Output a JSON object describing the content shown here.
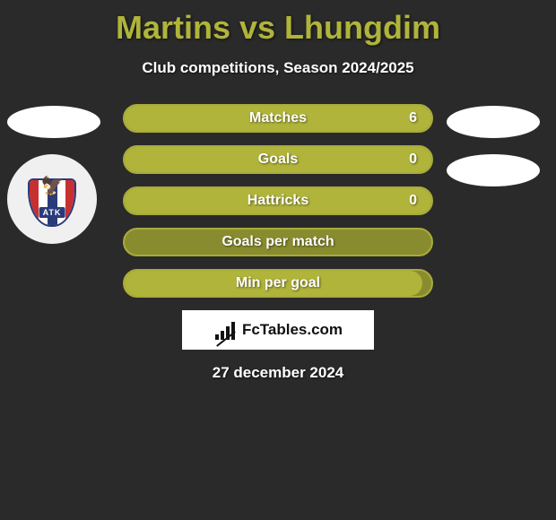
{
  "title": "Martins vs Lhungdim",
  "subtitle": "Club competitions, Season 2024/2025",
  "colors": {
    "background": "#2a2a2a",
    "accent": "#b0b43a",
    "bar_bg": "#898c2e",
    "bar_border": "#a8ac3a",
    "text_light": "#ffffff"
  },
  "logo": {
    "label": "ATK",
    "name": "atk-team-logo"
  },
  "shapes": {
    "left_ellipses": 1,
    "right_ellipses": 2
  },
  "stats": [
    {
      "label": "Matches",
      "value": "6",
      "fill_pct": 100
    },
    {
      "label": "Goals",
      "value": "0",
      "fill_pct": 100
    },
    {
      "label": "Hattricks",
      "value": "0",
      "fill_pct": 100
    },
    {
      "label": "Goals per match",
      "value": "",
      "fill_pct": 0
    },
    {
      "label": "Min per goal",
      "value": "",
      "fill_pct": 97
    }
  ],
  "brand": "FcTables.com",
  "date": "27 december 2024"
}
